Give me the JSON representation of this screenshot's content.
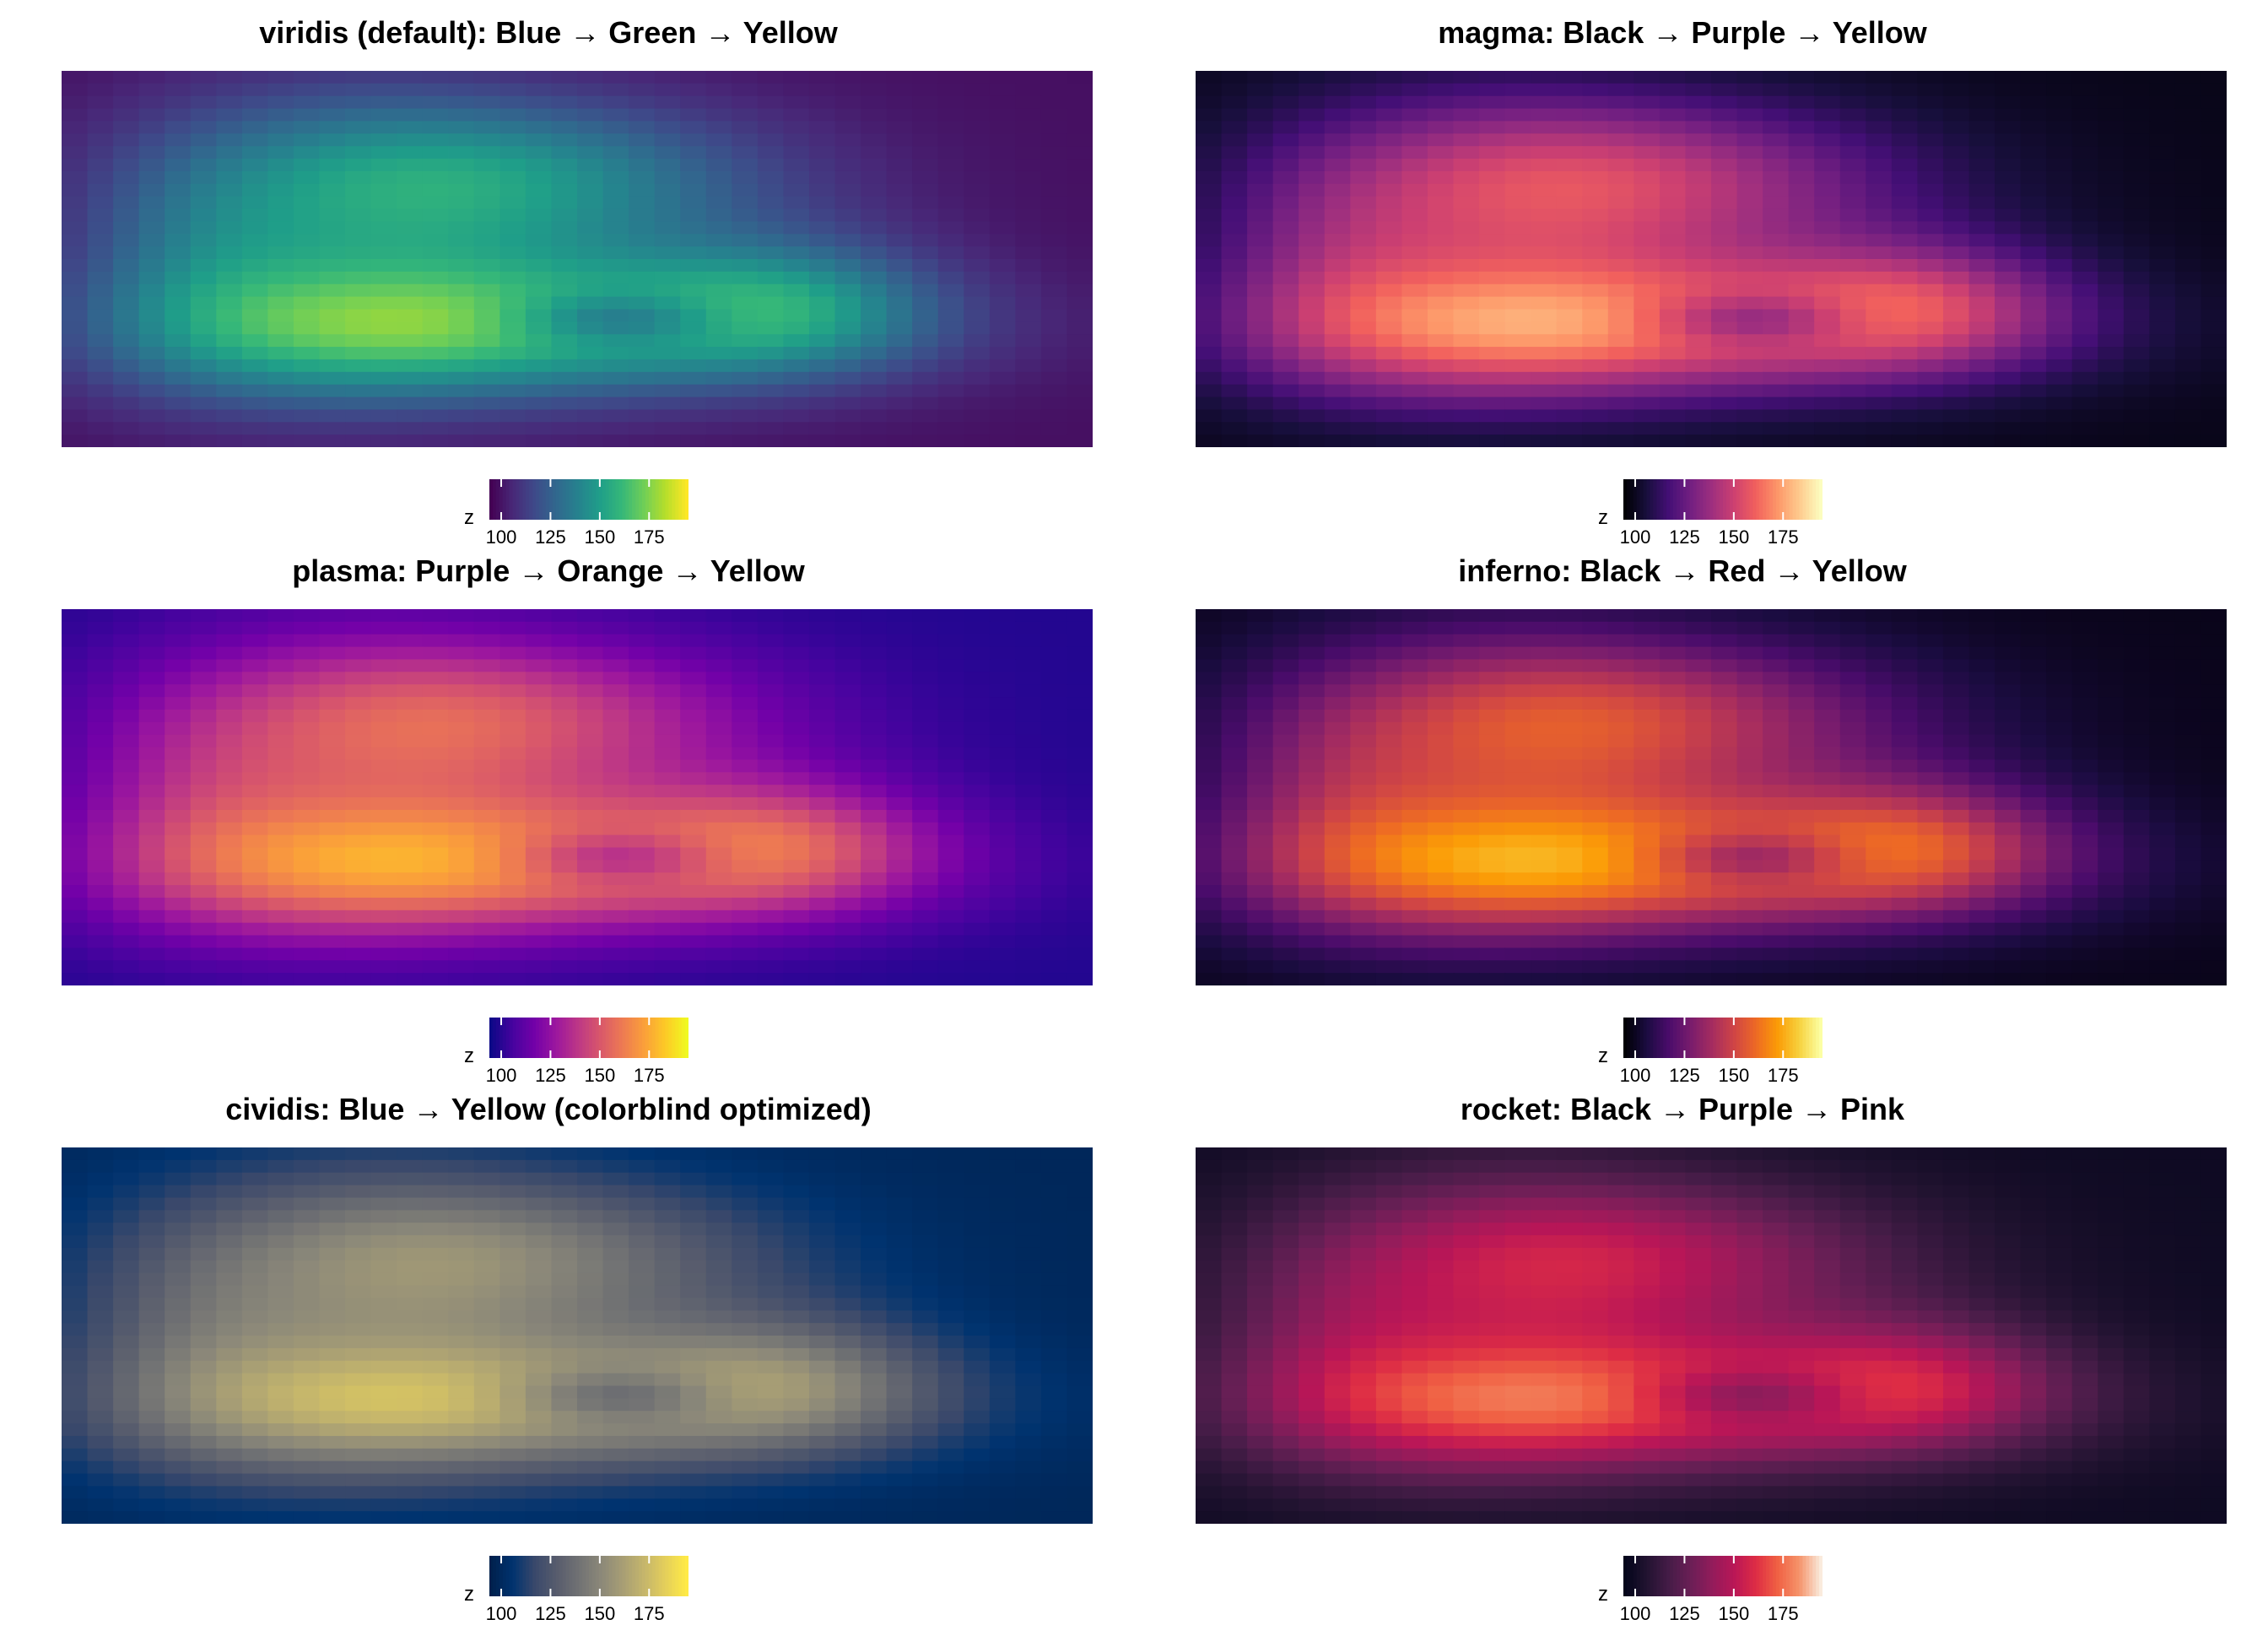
{
  "chart_data": [
    {
      "type": "heatmap",
      "palette": "viridis",
      "title": "viridis (default): Blue → Green → Yellow",
      "legend_title": "z",
      "legend_ticks": [
        100,
        125,
        150,
        175
      ],
      "zlim": [
        94,
        195
      ],
      "stops": [
        "#440154",
        "#482878",
        "#3e4a89",
        "#31688e",
        "#26828e",
        "#1f9e89",
        "#35b779",
        "#6ece58",
        "#b5de2b",
        "#fde725"
      ]
    },
    {
      "type": "heatmap",
      "palette": "magma",
      "title": "magma: Black → Purple → Yellow",
      "legend_title": "z",
      "legend_ticks": [
        100,
        125,
        150,
        175
      ],
      "zlim": [
        94,
        195
      ],
      "stops": [
        "#000004",
        "#180f3d",
        "#440f76",
        "#721f81",
        "#9e2f7f",
        "#cd4071",
        "#f1605d",
        "#fd9668",
        "#feca8d",
        "#fcfdbf"
      ]
    },
    {
      "type": "heatmap",
      "palette": "plasma",
      "title": "plasma: Purple → Orange → Yellow",
      "legend_title": "z",
      "legend_ticks": [
        100,
        125,
        150,
        175
      ],
      "zlim": [
        94,
        195
      ],
      "stops": [
        "#0d0887",
        "#47039f",
        "#7301a8",
        "#9c179e",
        "#bd3786",
        "#d8576b",
        "#ed7953",
        "#fa9e3b",
        "#fdc926",
        "#f0f921"
      ]
    },
    {
      "type": "heatmap",
      "palette": "inferno",
      "title": "inferno: Black → Red → Yellow",
      "legend_title": "z",
      "legend_ticks": [
        100,
        125,
        150,
        175
      ],
      "zlim": [
        94,
        195
      ],
      "stops": [
        "#000004",
        "#1b0c41",
        "#4a0c6b",
        "#781c6d",
        "#a52c60",
        "#cf4446",
        "#ed6925",
        "#fb9b06",
        "#f7d13d",
        "#fcffa4"
      ]
    },
    {
      "type": "heatmap",
      "palette": "cividis",
      "title": "cividis: Blue → Yellow (colorblind optimized)",
      "legend_title": "z",
      "legend_ticks": [
        100,
        125,
        150,
        175
      ],
      "zlim": [
        94,
        195
      ],
      "stops": [
        "#00204d",
        "#00336f",
        "#39486b",
        "#575c6d",
        "#707173",
        "#8a8779",
        "#a69d75",
        "#c4b56c",
        "#e4cf5b",
        "#ffea46"
      ]
    },
    {
      "type": "heatmap",
      "palette": "rocket",
      "title": "rocket: Black → Purple → Pink",
      "legend_title": "z",
      "legend_ticks": [
        100,
        125,
        150,
        175
      ],
      "zlim": [
        94,
        195
      ],
      "stops": [
        "#03051a",
        "#221331",
        "#451c47",
        "#6a1f56",
        "#921c5b",
        "#b91657",
        "#dd2c45",
        "#f06043",
        "#f5936a",
        "#faebdd"
      ]
    }
  ]
}
